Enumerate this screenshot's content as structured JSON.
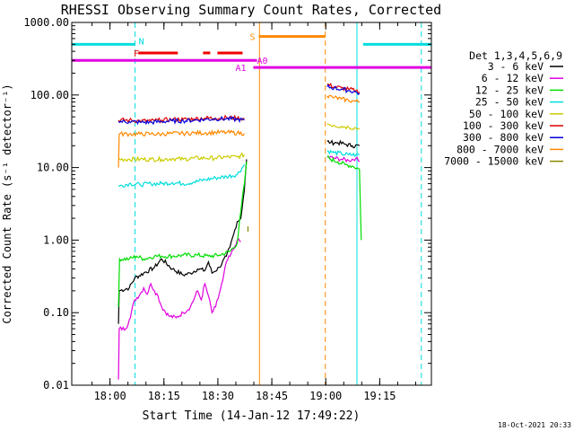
{
  "chart_data": {
    "type": "line",
    "title": "RHESSI Observing Summary Count Rates, Corrected",
    "xlabel": "Start Time (14-Jan-12 17:49:22)",
    "ylabel": "Corrected Count Rate (s⁻¹ detector⁻¹)",
    "yscale": "log",
    "ylim": [
      0.01,
      1000
    ],
    "xlim_minutes_from_start": [
      0,
      100
    ],
    "y_ticks": [
      "0.01",
      "0.10",
      "1.00",
      "10.00",
      "100.00",
      "1000.00"
    ],
    "x_ticks": [
      {
        "label": "18:00",
        "minute": 10.63
      },
      {
        "label": "18:15",
        "minute": 25.63
      },
      {
        "label": "18:30",
        "minute": 40.63
      },
      {
        "label": "18:45",
        "minute": 55.63
      },
      {
        "label": "19:00",
        "minute": 70.63
      },
      {
        "label": "19:15",
        "minute": 85.63
      }
    ],
    "legend_title": "Det 1,3,4,5,6,9",
    "series": [
      {
        "name": "3 - 6 keV",
        "color": "#000000",
        "segments": [
          [
            [
              13,
              0.07
            ],
            [
              13.2,
              0.2
            ],
            [
              16,
              0.22
            ],
            [
              17.5,
              0.3
            ],
            [
              20,
              0.35
            ],
            [
              23,
              0.42
            ],
            [
              25,
              0.55
            ],
            [
              28,
              0.4
            ],
            [
              31,
              0.33
            ],
            [
              33,
              0.35
            ],
            [
              35,
              0.4
            ],
            [
              37,
              0.38
            ],
            [
              38,
              0.5
            ],
            [
              39,
              0.35
            ],
            [
              41,
              0.42
            ],
            [
              43,
              0.6
            ],
            [
              44,
              0.8
            ],
            [
              45,
              1.2
            ],
            [
              46,
              1.8
            ],
            [
              47,
              2.0
            ],
            [
              48,
              5
            ],
            [
              48.6,
              13
            ]
          ],
          [
            [
              71,
              23
            ],
            [
              72,
              22
            ],
            [
              74,
              22
            ],
            [
              76,
              21
            ],
            [
              78,
              20
            ],
            [
              80,
              20
            ]
          ]
        ]
      },
      {
        "name": "6 - 12 keV",
        "color": "#e000e0",
        "segments": [
          [
            [
              13,
              0.012
            ],
            [
              13.2,
              0.06
            ],
            [
              15,
              0.06
            ],
            [
              16,
              0.08
            ],
            [
              17.5,
              0.15
            ],
            [
              19,
              0.18
            ],
            [
              20,
              0.22
            ],
            [
              21,
              0.18
            ],
            [
              22,
              0.25
            ],
            [
              23,
              0.2
            ],
            [
              24,
              0.17
            ],
            [
              25,
              0.12
            ],
            [
              27,
              0.09
            ],
            [
              29,
              0.085
            ],
            [
              31,
              0.1
            ],
            [
              33,
              0.12
            ],
            [
              35,
              0.2
            ],
            [
              36,
              0.15
            ],
            [
              37,
              0.25
            ],
            [
              38,
              0.17
            ],
            [
              39,
              0.1
            ],
            [
              40,
              0.12
            ],
            [
              41,
              0.18
            ],
            [
              42,
              0.28
            ],
            [
              43,
              0.5
            ],
            [
              44,
              0.6
            ],
            [
              45,
              0.75
            ],
            [
              46,
              1.0
            ],
            [
              47,
              0.95
            ]
          ],
          [
            [
              71,
              14
            ],
            [
              73,
              13.5
            ],
            [
              75,
              13
            ],
            [
              77,
              12.5
            ],
            [
              79,
              13.5
            ],
            [
              80,
              12
            ]
          ]
        ]
      },
      {
        "name": "12 - 25 keV",
        "color": "#00dd00",
        "segments": [
          [
            [
              13,
              0.12
            ],
            [
              13.3,
              0.55
            ],
            [
              16,
              0.55
            ],
            [
              18,
              0.6
            ],
            [
              20,
              0.55
            ],
            [
              23,
              0.6
            ],
            [
              25,
              0.6
            ],
            [
              28,
              0.6
            ],
            [
              31,
              0.62
            ],
            [
              35,
              0.62
            ],
            [
              38,
              0.6
            ],
            [
              41,
              0.62
            ],
            [
              44,
              0.7
            ],
            [
              46,
              0.9
            ],
            [
              47,
              2.5
            ],
            [
              48,
              6
            ],
            [
              48.6,
              12
            ]
          ],
          [
            [
              71,
              14
            ],
            [
              72,
              13
            ],
            [
              74,
              12
            ],
            [
              76,
              11
            ],
            [
              78,
              10.5
            ],
            [
              80,
              9.5
            ],
            [
              80.5,
              1.0
            ]
          ]
        ]
      },
      {
        "name": "25 - 50 keV",
        "color": "#00dddd",
        "segments": [
          [
            [
              13,
              5.5
            ],
            [
              16,
              6
            ],
            [
              19,
              5.8
            ],
            [
              22,
              6
            ],
            [
              25,
              6
            ],
            [
              28,
              6.2
            ],
            [
              31,
              6
            ],
            [
              34,
              6.3
            ],
            [
              37,
              6.8
            ],
            [
              40,
              7.2
            ],
            [
              43,
              7.5
            ],
            [
              46,
              8
            ],
            [
              48,
              11
            ]
          ],
          [
            [
              71,
              17
            ],
            [
              73,
              16
            ],
            [
              75,
              15.5
            ],
            [
              77,
              15
            ],
            [
              79,
              15
            ],
            [
              80,
              15
            ]
          ]
        ]
      },
      {
        "name": "50 - 100 keV",
        "color": "#cccc00",
        "segments": [
          [
            [
              13,
              13
            ],
            [
              16,
              13
            ],
            [
              19,
              13
            ],
            [
              22,
              13
            ],
            [
              25,
              13
            ],
            [
              28,
              13.3
            ],
            [
              31,
              13
            ],
            [
              34,
              13.5
            ],
            [
              37,
              13.5
            ],
            [
              40,
              13.5
            ],
            [
              43,
              14
            ],
            [
              46,
              14
            ],
            [
              48,
              15
            ]
          ],
          [
            [
              71,
              40
            ],
            [
              73,
              38
            ],
            [
              75,
              37
            ],
            [
              77,
              36
            ],
            [
              79,
              35
            ],
            [
              80,
              34
            ]
          ]
        ]
      },
      {
        "name": "100 - 300 keV",
        "color": "#dd0000",
        "segments": [
          [
            [
              13,
              45
            ],
            [
              16,
              45
            ],
            [
              19,
              44
            ],
            [
              22,
              44
            ],
            [
              25,
              45
            ],
            [
              28,
              46
            ],
            [
              31,
              46
            ],
            [
              34,
              47
            ],
            [
              37,
              48
            ],
            [
              40,
              48
            ],
            [
              43,
              49
            ],
            [
              46,
              48
            ],
            [
              48,
              47
            ]
          ],
          [
            [
              71,
              140
            ],
            [
              73,
              130
            ],
            [
              75,
              125
            ],
            [
              77,
              120
            ],
            [
              79,
              115
            ],
            [
              80,
              110
            ]
          ]
        ]
      },
      {
        "name": "300 - 800 keV",
        "color": "#0000dd",
        "segments": [
          [
            [
              13,
              43
            ],
            [
              16,
              43
            ],
            [
              19,
              42
            ],
            [
              22,
              42
            ],
            [
              25,
              43
            ],
            [
              28,
              44
            ],
            [
              31,
              44
            ],
            [
              34,
              45
            ],
            [
              37,
              46
            ],
            [
              40,
              47
            ],
            [
              43,
              47
            ],
            [
              46,
              46
            ],
            [
              48,
              45
            ]
          ],
          [
            [
              71,
              130
            ],
            [
              73,
              125
            ],
            [
              75,
              120
            ],
            [
              77,
              115
            ],
            [
              79,
              110
            ],
            [
              80,
              105
            ]
          ]
        ]
      },
      {
        "name": "800 - 7000 keV",
        "color": "#ff8800",
        "segments": [
          [
            [
              13,
              10
            ],
            [
              13.2,
              29
            ],
            [
              16,
              29
            ],
            [
              19,
              29
            ],
            [
              22,
              29
            ],
            [
              25,
              29
            ],
            [
              28,
              29.5
            ],
            [
              31,
              29.5
            ],
            [
              34,
              30
            ],
            [
              37,
              30
            ],
            [
              40,
              30.5
            ],
            [
              43,
              30.5
            ],
            [
              46,
              30
            ],
            [
              48,
              29.5
            ]
          ],
          [
            [
              71,
              97
            ],
            [
              73,
              92
            ],
            [
              75,
              88
            ],
            [
              77,
              84
            ],
            [
              79,
              82
            ],
            [
              80,
              80
            ]
          ]
        ]
      },
      {
        "name": "7000 - 15000 keV",
        "color": "#888800",
        "segments": [
          [
            [
              49,
              1.55
            ],
            [
              49,
              1.3
            ]
          ]
        ]
      }
    ],
    "attenuator_bars": [
      {
        "label": "N",
        "color": "#00dddd",
        "value": 500,
        "from_min": 0,
        "to_min": 17.5
      },
      {
        "label": "N",
        "color": "#00dddd",
        "value": 500,
        "from_min": 81,
        "to_min": 100
      },
      {
        "label": "F",
        "color": "#ee0000",
        "value": 380,
        "from_min": 18.5,
        "to_min": 29.5
      },
      {
        "label": "F",
        "color": "#ee0000",
        "value": 380,
        "from_min": 36.5,
        "to_min": 38.5
      },
      {
        "label": "F",
        "color": "#ee0000",
        "value": 380,
        "from_min": 40.5,
        "to_min": 47.5
      },
      {
        "label": "S",
        "color": "#ff8800",
        "value": 640,
        "from_min": 52,
        "to_min": 70.5
      },
      {
        "label": "A0",
        "color": "#e000e0",
        "value": 300,
        "from_min": 0,
        "to_min": 51.5
      },
      {
        "label": "A1",
        "color": "#e000e0",
        "value": 240,
        "from_min": 50.5,
        "to_min": 100
      }
    ],
    "markers": [
      {
        "label": "N",
        "color": "#00dddd"
      },
      {
        "label": "F",
        "color": "#ee0000"
      },
      {
        "label": "S",
        "color": "#ff8800"
      },
      {
        "label": "A0",
        "color": "#e000e0"
      },
      {
        "label": "A1",
        "color": "#e000e0"
      }
    ],
    "vertical_lines": [
      {
        "minute": 0,
        "color": "#00dddd",
        "dashed": false
      },
      {
        "minute": 17.6,
        "color": "#00dddd",
        "dashed": true
      },
      {
        "minute": 52.2,
        "color": "#ff8800",
        "dashed": false
      },
      {
        "minute": 70.5,
        "color": "#ff8800",
        "dashed": true
      },
      {
        "minute": 79.3,
        "color": "#00dddd",
        "dashed": false
      },
      {
        "minute": 97.2,
        "color": "#00dddd",
        "dashed": true
      }
    ],
    "footer": "18-Oct-2021 20:33"
  }
}
